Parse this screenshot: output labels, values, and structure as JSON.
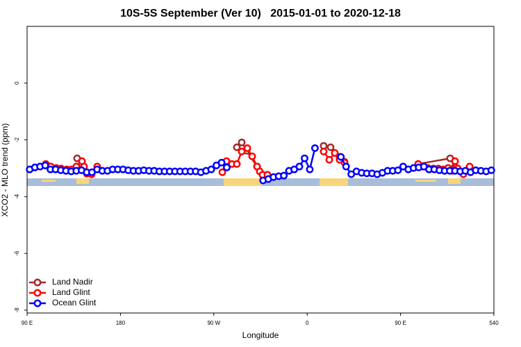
{
  "chart_data": {
    "type": "line",
    "title": "10S-5S September (Ver 10)   2015-01-01 to 2020-12-18",
    "x_label": "Longitude",
    "y_label": "XCO2 - MLO trend (ppm)",
    "xlim": [
      90,
      540
    ],
    "ylim": [
      -8.1,
      2
    ],
    "xticks": [
      {
        "value": 90,
        "label": "90 E"
      },
      180,
      {
        "value": 270,
        "label": "90 W"
      },
      {
        "value": 360,
        "label": "0"
      },
      {
        "value": 450,
        "label": "90 E"
      },
      540
    ],
    "yticks": [
      0,
      -2,
      -4,
      -6,
      -8
    ],
    "legend": "bottom-left",
    "series": [
      {
        "name": "Land Nadir",
        "color": "#a52a2a",
        "x": [
          138.2,
          142.9,
          200,
          292.2,
          296.9,
          301.6,
          311.7,
          317.0,
          321.7,
          350,
          375.9,
          382.6,
          391.3,
          396.0,
          430,
          467.0,
          497.8,
          502.5
        ],
        "values": [
          -2.65,
          -2.9,
          null,
          -2.26,
          -2.09,
          -2.38,
          -2.94,
          -3.23,
          -3.28,
          null,
          -2.21,
          -2.26,
          -2.6,
          -2.77,
          null,
          -2.85,
          -2.65,
          -2.94
        ]
      },
      {
        "name": "Land Glint",
        "color": "#ff0000",
        "x": [
          108.1,
          112.8,
          118.1,
          122.8,
          128.2,
          132.9,
          137.5,
          142.9,
          144.9,
          147.6,
          152.3,
          157.6,
          200,
          278.2,
          282.2,
          287.5,
          292.2,
          296.9,
          302.3,
          307.0,
          311.7,
          314.3,
          317.0,
          321.7,
          350,
          375.9,
          381.3,
          386.6,
          391.3,
          396.0,
          430,
          467.0,
          471.7,
          476.4,
          481.7,
          486.4,
          491.1,
          495.8,
          500.5,
          502.5,
          505.2,
          510.6,
          516.6
        ],
        "values": [
          -2.85,
          -2.94,
          -2.99,
          -3.01,
          -3.04,
          -3.04,
          -2.94,
          -2.75,
          -2.94,
          -3.19,
          -3.21,
          -2.94,
          null,
          -3.14,
          -2.75,
          -2.85,
          -2.85,
          -2.41,
          -2.29,
          -2.58,
          -2.94,
          -3.11,
          -3.23,
          -3.23,
          null,
          -2.41,
          -2.7,
          -2.46,
          -2.7,
          -2.8,
          null,
          -2.85,
          -2.94,
          -2.99,
          -3.01,
          -3.01,
          -3.04,
          -2.99,
          -3.09,
          -2.75,
          -3.01,
          -3.21,
          -2.94
        ]
      },
      {
        "name": "Ocean Glint",
        "color": "#0000ff",
        "x": [
          92.5,
          97.5,
          102.5,
          107.5,
          112.5,
          117.5,
          122.5,
          127.5,
          132.5,
          137.5,
          142.5,
          147.5,
          152.5,
          157.5,
          162.5,
          167.5,
          172.5,
          177.5,
          182.5,
          187.5,
          192.5,
          197.5,
          202.5,
          207.5,
          212.5,
          217.5,
          222.5,
          227.5,
          232.5,
          237.5,
          242.5,
          247.5,
          252.5,
          257.5,
          262.5,
          267.5,
          272.5,
          277.5,
          282.5,
          287.5,
          292.5,
          297.5,
          302.5,
          307.5,
          312.5,
          317.5,
          322.5,
          327.5,
          332.5,
          337.5,
          342.5,
          347.5,
          352.5,
          357.5,
          362.5,
          367.5,
          372.5,
          377.5,
          382.5,
          387.5,
          392.5,
          397.5,
          402.5,
          407.5,
          412.5,
          417.5,
          422.5,
          427.5,
          432.5,
          437.5,
          442.5,
          447.5,
          452.5,
          457.5,
          462.5,
          467.5,
          472.5,
          477.5,
          482.5,
          487.5,
          492.5,
          497.5,
          502.5,
          507.5,
          512.5,
          517.5,
          522.5,
          527.5,
          532.5,
          537.5
        ],
        "values": [
          -3.04,
          -2.97,
          -2.94,
          -2.9,
          -3.04,
          -3.04,
          -3.07,
          -3.09,
          -3.11,
          -3.09,
          -3.07,
          -3.14,
          -3.14,
          -3.04,
          -3.09,
          -3.09,
          -3.04,
          -3.04,
          -3.04,
          -3.07,
          -3.09,
          -3.09,
          -3.07,
          -3.09,
          -3.09,
          -3.11,
          -3.11,
          -3.11,
          -3.11,
          -3.11,
          -3.11,
          -3.11,
          -3.11,
          -3.14,
          -3.09,
          -3.04,
          -2.9,
          -2.8,
          -2.97,
          null,
          null,
          null,
          null,
          null,
          null,
          -3.43,
          -3.38,
          -3.31,
          -3.28,
          -3.26,
          -3.09,
          -3.04,
          -2.94,
          -2.65,
          -3.04,
          -2.29,
          null,
          null,
          null,
          null,
          -2.6,
          -2.94,
          -3.21,
          -3.11,
          -3.16,
          -3.18,
          -3.18,
          -3.21,
          -3.16,
          -3.09,
          -3.09,
          -3.07,
          -2.94,
          -3.04,
          -2.99,
          -2.97,
          -2.94,
          -3.04,
          -3.04,
          -3.07,
          -3.09,
          -3.09,
          -3.09,
          -3.11,
          -3.09,
          -3.14,
          -3.07,
          -3.09,
          -3.11,
          -3.07
        ]
      }
    ]
  }
}
